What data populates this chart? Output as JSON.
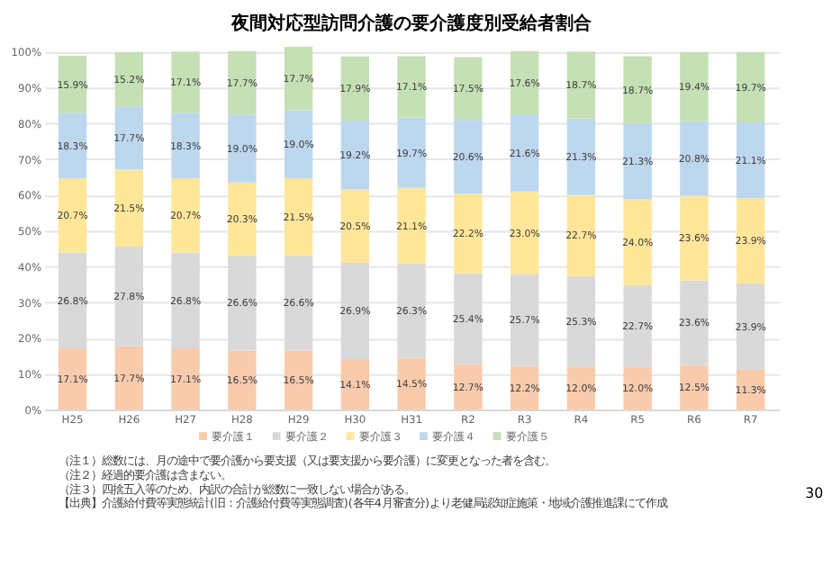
{
  "chart_data": {
    "type": "bar",
    "stacked": true,
    "title": "夜間対応型訪問介護の要介護度別受給者割合",
    "categories": [
      "H25",
      "H26",
      "H27",
      "H28",
      "H29",
      "H30",
      "H31",
      "R2",
      "R3",
      "R4",
      "R5",
      "R6",
      "R7"
    ],
    "series": [
      {
        "name": "要介護１",
        "color": "#f8cbad",
        "values": [
          17.1,
          17.7,
          17.1,
          16.5,
          16.5,
          14.1,
          14.5,
          12.7,
          12.2,
          12.0,
          12.0,
          12.5,
          11.3
        ],
        "value_labels": [
          "17.1%",
          "17.7%",
          "17.1%",
          "16.5%",
          "16.5%",
          "14.1%",
          "14.5%",
          "12.7%",
          "12.2%",
          "12.0%",
          "12.0%",
          "12.5%",
          "11.3%"
        ]
      },
      {
        "name": "要介護２",
        "color": "#d9d9d9",
        "values": [
          26.8,
          27.8,
          26.8,
          26.6,
          26.6,
          26.9,
          26.3,
          25.4,
          25.7,
          25.3,
          22.7,
          23.6,
          23.9
        ],
        "value_labels": [
          "26.8%",
          "27.8%",
          "26.8%",
          "26.6%",
          "26.6%",
          "26.9%",
          "26.3%",
          "25.4%",
          "25.7%",
          "25.3%",
          "22.7%",
          "23.6%",
          "23.9%"
        ]
      },
      {
        "name": "要介護３",
        "color": "#ffe699",
        "values": [
          20.7,
          21.5,
          20.7,
          20.3,
          21.5,
          20.5,
          21.1,
          22.2,
          23.0,
          22.7,
          24.0,
          23.6,
          23.9
        ],
        "value_labels": [
          "20.7%",
          "21.5%",
          "20.7%",
          "20.3%",
          "21.5%",
          "20.5%",
          "21.1%",
          "22.2%",
          "23.0%",
          "22.7%",
          "24.0%",
          "23.6%",
          "23.9%"
        ]
      },
      {
        "name": "要介護４",
        "color": "#bdd7ee",
        "values": [
          18.3,
          17.7,
          18.3,
          19.0,
          19.0,
          19.2,
          19.7,
          20.6,
          21.6,
          21.3,
          21.3,
          20.8,
          21.1
        ],
        "value_labels": [
          "18.3%",
          "17.7%",
          "18.3%",
          "19.0%",
          "19.0%",
          "19.2%",
          "19.7%",
          "20.6%",
          "21.6%",
          "21.3%",
          "21.3%",
          "20.8%",
          "21.1%"
        ]
      },
      {
        "name": "要介護５",
        "color": "#c5e0b4",
        "values": [
          15.9,
          15.2,
          17.1,
          17.7,
          17.7,
          17.9,
          17.1,
          17.5,
          17.6,
          18.7,
          18.7,
          19.4,
          19.7
        ],
        "value_labels": [
          "15.9%",
          "15.2%",
          "17.1%",
          "17.7%",
          "17.7%",
          "17.9%",
          "17.1%",
          "17.5%",
          "17.6%",
          "18.7%",
          "18.7%",
          "19.4%",
          "19.7%"
        ]
      }
    ],
    "ylim": [
      0,
      101.3
    ],
    "yticks": [
      {
        "value": 0,
        "label": "0%"
      },
      {
        "value": 10,
        "label": "10%"
      },
      {
        "value": 20,
        "label": "20%"
      },
      {
        "value": 30,
        "label": "30%"
      },
      {
        "value": 40,
        "label": "40%"
      },
      {
        "value": 50,
        "label": "50%"
      },
      {
        "value": 60,
        "label": "60%"
      },
      {
        "value": 70,
        "label": "70%"
      },
      {
        "value": 80,
        "label": "80%"
      },
      {
        "value": 90,
        "label": "90%"
      },
      {
        "value": 100,
        "label": "100%"
      }
    ],
    "grid": "y",
    "legend": "bottom",
    "annotations": [
      "（注１）総数には、月の途中で要介護から要支援（又は要支援から要介護）に変更となった者を含む。",
      "（注２）経過的要介護は含まない。",
      "（注３）四捨五入等のため、内訳の合計が総数に一致しない場合がある。",
      "【出典】介護給付費等実態統計(旧：介護給付費等実態調査)(各年4月審査分)より老健局認知症施策・地域介護推進課にて作成",
      "30"
    ]
  }
}
